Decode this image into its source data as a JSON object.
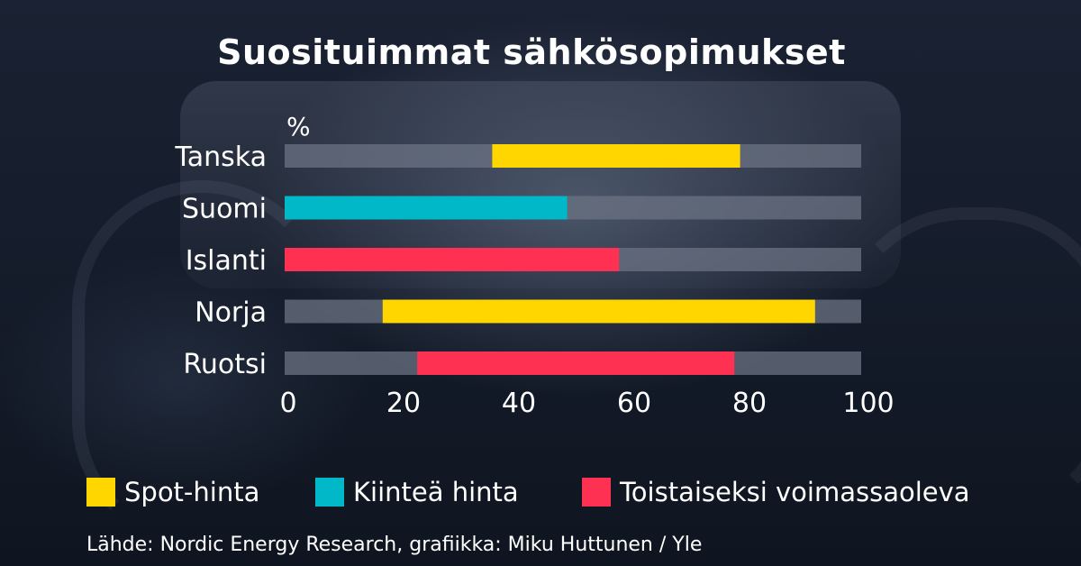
{
  "title": "Suosituimmat sähkösopimukset",
  "source": "Lähde: Nordic Energy Research, grafiikka: Miku Huttunen / Yle",
  "legend": [
    {
      "name": "Spot-hinta",
      "color": "#ffd600"
    },
    {
      "name": "Kiinteä hinta",
      "color": "#00b8c8"
    },
    {
      "name": "Toistaiseksi voimassaoleva",
      "color": "#ff3152"
    }
  ],
  "chart_data": {
    "type": "bar",
    "orientation": "horizontal",
    "title": "Suosituimmat sähkösopimukset",
    "ylabel": "%",
    "xlim": [
      0,
      100
    ],
    "x_ticks": [
      "0",
      "20",
      "40",
      "60",
      "80",
      "100"
    ],
    "track_color": "#6b7383",
    "categories": [
      "Tanska",
      "Suomi",
      "Islanti",
      "Norja",
      "Ruotsi"
    ],
    "bars": [
      {
        "category": "Tanska",
        "series": "Spot-hinta",
        "start": 36,
        "end": 79,
        "color": "#ffd600"
      },
      {
        "category": "Suomi",
        "series": "Kiinteä hinta",
        "start": 0,
        "end": 49,
        "color": "#00b8c8"
      },
      {
        "category": "Islanti",
        "series": "Toistaiseksi voimassaoleva",
        "start": 0,
        "end": 58,
        "color": "#ff3152"
      },
      {
        "category": "Norja",
        "series": "Spot-hinta",
        "start": 17,
        "end": 92,
        "color": "#ffd600"
      },
      {
        "category": "Ruotsi",
        "series": "Toistaiseksi voimassaoleva",
        "start": 23,
        "end": 78,
        "color": "#ff3152"
      }
    ]
  }
}
